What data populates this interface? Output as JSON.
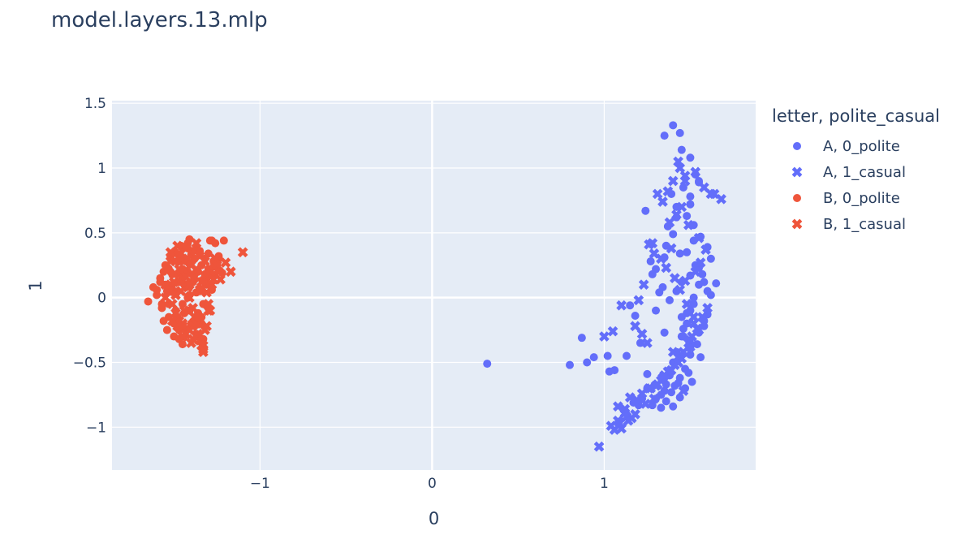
{
  "chart_data": {
    "type": "scatter",
    "title": "model.layers.13.mlp",
    "xlabel": "0",
    "ylabel": "1",
    "xlim": [
      -1.86,
      1.88
    ],
    "ylim": [
      -1.33,
      1.52
    ],
    "x_ticks": [
      -1,
      0,
      1
    ],
    "x_tick_labels": [
      "−1",
      "0",
      "1"
    ],
    "y_ticks": [
      -1,
      -0.5,
      0,
      0.5,
      1,
      1.5
    ],
    "y_tick_labels": [
      "−1",
      "−0.5",
      "0",
      "0.5",
      "1",
      "1.5"
    ],
    "grid": true,
    "legend": {
      "title": "letter, polite_casual",
      "position": "right"
    },
    "series": [
      {
        "name": "A, 0_polite",
        "color": "#636efa",
        "marker": "circle",
        "x": [
          0.32,
          0.8,
          0.87,
          0.9,
          0.94,
          1.02,
          1.03,
          1.06,
          1.13,
          1.17,
          1.2,
          1.22,
          1.25,
          1.28,
          1.3,
          1.33,
          1.35,
          1.36,
          1.38,
          1.4,
          1.42,
          1.45,
          1.48,
          1.5,
          1.52,
          1.55,
          1.58,
          1.6,
          1.65,
          1.4,
          1.44,
          1.45,
          1.5,
          1.53,
          1.55,
          1.46,
          1.5,
          1.42,
          1.48,
          1.52,
          1.56,
          1.6,
          1.62,
          1.55,
          1.5,
          1.45,
          1.42,
          1.38,
          1.36,
          1.4,
          1.48,
          1.53,
          1.57,
          1.35,
          1.3,
          1.27,
          1.24,
          1.45,
          1.52,
          1.58,
          1.46,
          1.5,
          1.55,
          1.6,
          1.54,
          1.5,
          1.47,
          1.44,
          1.41,
          1.39,
          1.43,
          1.49,
          1.56,
          1.33,
          1.36,
          1.4,
          1.44,
          1.47,
          1.51,
          1.37,
          1.42,
          1.5,
          1.35,
          1.55,
          1.62,
          1.25,
          1.21,
          1.18,
          1.15,
          1.3,
          1.34,
          1.28,
          1.32,
          1.48,
          1.46,
          1.52,
          1.44,
          1.39,
          1.58,
          1.35
        ],
        "y": [
          -0.51,
          -0.52,
          -0.31,
          -0.5,
          -0.46,
          -0.45,
          -0.57,
          -0.56,
          -0.45,
          -0.81,
          -0.83,
          -0.78,
          -0.7,
          -0.83,
          -0.78,
          -0.85,
          -0.72,
          -0.67,
          -0.6,
          -0.5,
          -0.42,
          -0.3,
          -0.2,
          -0.1,
          0.0,
          0.1,
          0.12,
          0.05,
          0.11,
          1.33,
          1.27,
          1.14,
          1.08,
          0.95,
          0.89,
          0.85,
          0.78,
          0.7,
          0.63,
          0.56,
          0.47,
          0.39,
          0.3,
          0.23,
          0.17,
          0.12,
          0.05,
          -0.02,
          0.4,
          0.49,
          0.35,
          0.25,
          0.18,
          0.31,
          0.22,
          0.28,
          0.67,
          -0.15,
          -0.05,
          -0.22,
          -0.3,
          -0.38,
          -0.27,
          -0.13,
          -0.36,
          -0.44,
          -0.55,
          -0.62,
          -0.68,
          -0.73,
          -0.66,
          -0.58,
          -0.46,
          -0.75,
          -0.8,
          -0.84,
          -0.77,
          -0.7,
          -0.65,
          0.55,
          0.62,
          0.72,
          1.25,
          0.9,
          0.02,
          -0.59,
          -0.35,
          -0.14,
          -0.06,
          -0.1,
          0.08,
          0.18,
          0.04,
          -0.12,
          -0.24,
          0.44,
          0.34,
          0.8,
          -0.18,
          -0.27
        ]
      },
      {
        "name": "A, 1_casual",
        "color": "#636efa",
        "marker": "x",
        "x": [
          0.97,
          1.04,
          1.08,
          1.1,
          1.12,
          1.14,
          1.16,
          1.19,
          1.22,
          1.26,
          1.29,
          1.31,
          1.34,
          1.37,
          1.41,
          1.43,
          1.46,
          1.49,
          1.51,
          1.54,
          1.57,
          1.6,
          1.64,
          1.68,
          1.62,
          1.58,
          1.53,
          1.47,
          1.44,
          1.4,
          1.37,
          1.34,
          1.31,
          1.28,
          1.25,
          1.22,
          1.18,
          1.1,
          1.05,
          1.0,
          1.08,
          1.15,
          1.27,
          1.33,
          1.39,
          1.45,
          1.5,
          1.55,
          1.52,
          1.48,
          1.44,
          1.41,
          1.36,
          1.33,
          1.29,
          1.26,
          1.23,
          1.2,
          1.38,
          1.42,
          1.45,
          1.49,
          1.55,
          1.59,
          1.56,
          1.53,
          1.47,
          1.4,
          1.35,
          1.43,
          1.5,
          1.46,
          1.52,
          1.39,
          1.3,
          1.24,
          1.18,
          1.13,
          1.09,
          1.06,
          1.12,
          1.43,
          1.47
        ],
        "y": [
          -1.15,
          -0.99,
          -0.95,
          -1.01,
          -0.86,
          -0.95,
          -0.93,
          -0.79,
          -0.74,
          -0.7,
          -0.78,
          -0.67,
          -0.62,
          -0.57,
          -0.52,
          -0.46,
          -0.42,
          -0.35,
          -0.3,
          -0.24,
          -0.15,
          -0.08,
          0.8,
          0.76,
          0.8,
          0.85,
          0.97,
          0.94,
          1.0,
          0.9,
          0.82,
          0.74,
          0.8,
          0.42,
          -0.35,
          -0.28,
          -0.22,
          -0.06,
          -0.26,
          -0.3,
          -0.84,
          -0.77,
          -0.7,
          -0.64,
          -0.56,
          -0.47,
          -0.38,
          -0.25,
          -0.15,
          -0.05,
          0.06,
          0.15,
          0.23,
          0.3,
          0.34,
          0.41,
          0.1,
          -0.02,
          0.58,
          0.64,
          0.7,
          0.56,
          0.46,
          0.37,
          0.27,
          0.2,
          0.13,
          -0.42,
          -0.6,
          -0.5,
          -0.33,
          -0.72,
          -0.2,
          0.38,
          -0.68,
          -0.82,
          -0.9,
          -0.92,
          -0.97,
          -1.02,
          -0.89,
          1.05,
          0.9
        ]
      },
      {
        "name": "B, 0_polite",
        "color": "#ef553b",
        "marker": "circle",
        "x": [
          -1.65,
          -1.62,
          -1.6,
          -1.58,
          -1.57,
          -1.55,
          -1.54,
          -1.53,
          -1.52,
          -1.51,
          -1.5,
          -1.49,
          -1.48,
          -1.47,
          -1.46,
          -1.45,
          -1.44,
          -1.43,
          -1.42,
          -1.41,
          -1.4,
          -1.39,
          -1.38,
          -1.37,
          -1.36,
          -1.35,
          -1.34,
          -1.33,
          -1.32,
          -1.31,
          -1.3,
          -1.29,
          -1.28,
          -1.27,
          -1.26,
          -1.25,
          -1.24,
          -1.22,
          -1.56,
          -1.53,
          -1.5,
          -1.47,
          -1.44,
          -1.41,
          -1.38,
          -1.35,
          -1.32,
          -1.55,
          -1.52,
          -1.49,
          -1.46,
          -1.43,
          -1.4,
          -1.37,
          -1.34,
          -1.31,
          -1.28,
          -1.54,
          -1.51,
          -1.48,
          -1.45,
          -1.42,
          -1.39,
          -1.36,
          -1.33,
          -1.3,
          -1.58,
          -1.5,
          -1.46,
          -1.42,
          -1.38,
          -1.34,
          -1.44,
          -1.4,
          -1.36,
          -1.48,
          -1.45,
          -1.41,
          -1.37,
          -1.33,
          -1.29,
          -1.57,
          -1.53,
          -1.49,
          -1.43,
          -1.39,
          -1.35,
          -1.47,
          -1.44,
          -1.41,
          -1.38,
          -1.52,
          -1.56,
          -1.6,
          -1.3,
          -1.27,
          -1.24,
          -1.21,
          -1.45,
          -1.42
        ],
        "y": [
          -0.03,
          0.08,
          0.02,
          0.15,
          -0.08,
          0.25,
          0.05,
          -0.15,
          0.3,
          0.1,
          -0.2,
          0.35,
          0.18,
          -0.25,
          0.4,
          0.22,
          -0.3,
          0.28,
          0.0,
          -0.1,
          0.33,
          0.12,
          -0.22,
          0.38,
          0.2,
          0.07,
          0.25,
          -0.05,
          0.3,
          0.15,
          0.22,
          0.44,
          0.44,
          0.28,
          0.42,
          0.25,
          0.3,
          0.19,
          -0.18,
          -0.05,
          0.05,
          0.12,
          -0.12,
          0.02,
          0.14,
          0.36,
          0.18,
          0.1,
          0.2,
          -0.1,
          0.28,
          0.08,
          -0.2,
          -0.28,
          -0.15,
          0.1,
          0.06,
          -0.25,
          0.18,
          0.28,
          -0.05,
          0.2,
          0.36,
          -0.15,
          -0.32,
          -0.08,
          0.12,
          -0.3,
          0.32,
          0.38,
          0.3,
          -0.2,
          0.1,
          -0.22,
          -0.12,
          -0.15,
          0.15,
          0.26,
          0.04,
          0.14,
          0.2,
          -0.05,
          0.22,
          0.03,
          -0.25,
          0.12,
          0.05,
          -0.32,
          0.3,
          0.45,
          0.18,
          0.32,
          0.2,
          0.06,
          0.34,
          0.24,
          0.32,
          0.44,
          -0.36,
          0.42
        ]
      },
      {
        "name": "B, 1_casual",
        "color": "#ef553b",
        "marker": "x",
        "x": [
          -1.1,
          -1.17,
          -1.2,
          -1.23,
          -1.26,
          -1.28,
          -1.3,
          -1.32,
          -1.33,
          -1.34,
          -1.35,
          -1.36,
          -1.37,
          -1.38,
          -1.39,
          -1.4,
          -1.41,
          -1.42,
          -1.43,
          -1.44,
          -1.45,
          -1.46,
          -1.47,
          -1.48,
          -1.49,
          -1.5,
          -1.51,
          -1.52,
          -1.53,
          -1.54,
          -1.55,
          -1.31,
          -1.29,
          -1.27,
          -1.25,
          -1.33,
          -1.35,
          -1.37,
          -1.39,
          -1.41,
          -1.43,
          -1.45,
          -1.47,
          -1.49,
          -1.3,
          -1.34,
          -1.38,
          -1.42,
          -1.46,
          -1.5,
          -1.36,
          -1.4,
          -1.44,
          -1.48,
          -1.52,
          -1.32,
          -1.28,
          -1.24,
          -1.35,
          -1.39,
          -1.43,
          -1.47,
          -1.51,
          -1.55,
          -1.33,
          -1.37,
          -1.41,
          -1.45,
          -1.49,
          -1.31,
          -1.27
        ],
        "y": [
          0.35,
          0.2,
          0.27,
          0.14,
          0.3,
          0.1,
          -0.1,
          -0.25,
          -0.42,
          -0.37,
          -0.33,
          -0.3,
          -0.2,
          -0.15,
          -0.08,
          -0.35,
          0.0,
          0.08,
          -0.28,
          0.2,
          -0.22,
          0.3,
          -0.18,
          0.4,
          -0.12,
          0.12,
          -0.05,
          0.28,
          0.05,
          0.22,
          0.1,
          0.04,
          -0.1,
          0.18,
          0.25,
          -0.37,
          0.32,
          0.42,
          0.15,
          -0.25,
          0.38,
          -0.3,
          0.22,
          0.02,
          -0.05,
          0.12,
          -0.15,
          0.3,
          0.05,
          0.18,
          -0.28,
          0.25,
          -0.1,
          -0.22,
          0.35,
          0.28,
          0.1,
          0.2,
          0.06,
          -0.32,
          0.16,
          0.34,
          -0.18,
          0.0,
          -0.4,
          0.22,
          0.1,
          -0.2,
          0.28,
          -0.22,
          0.14
        ]
      }
    ]
  }
}
